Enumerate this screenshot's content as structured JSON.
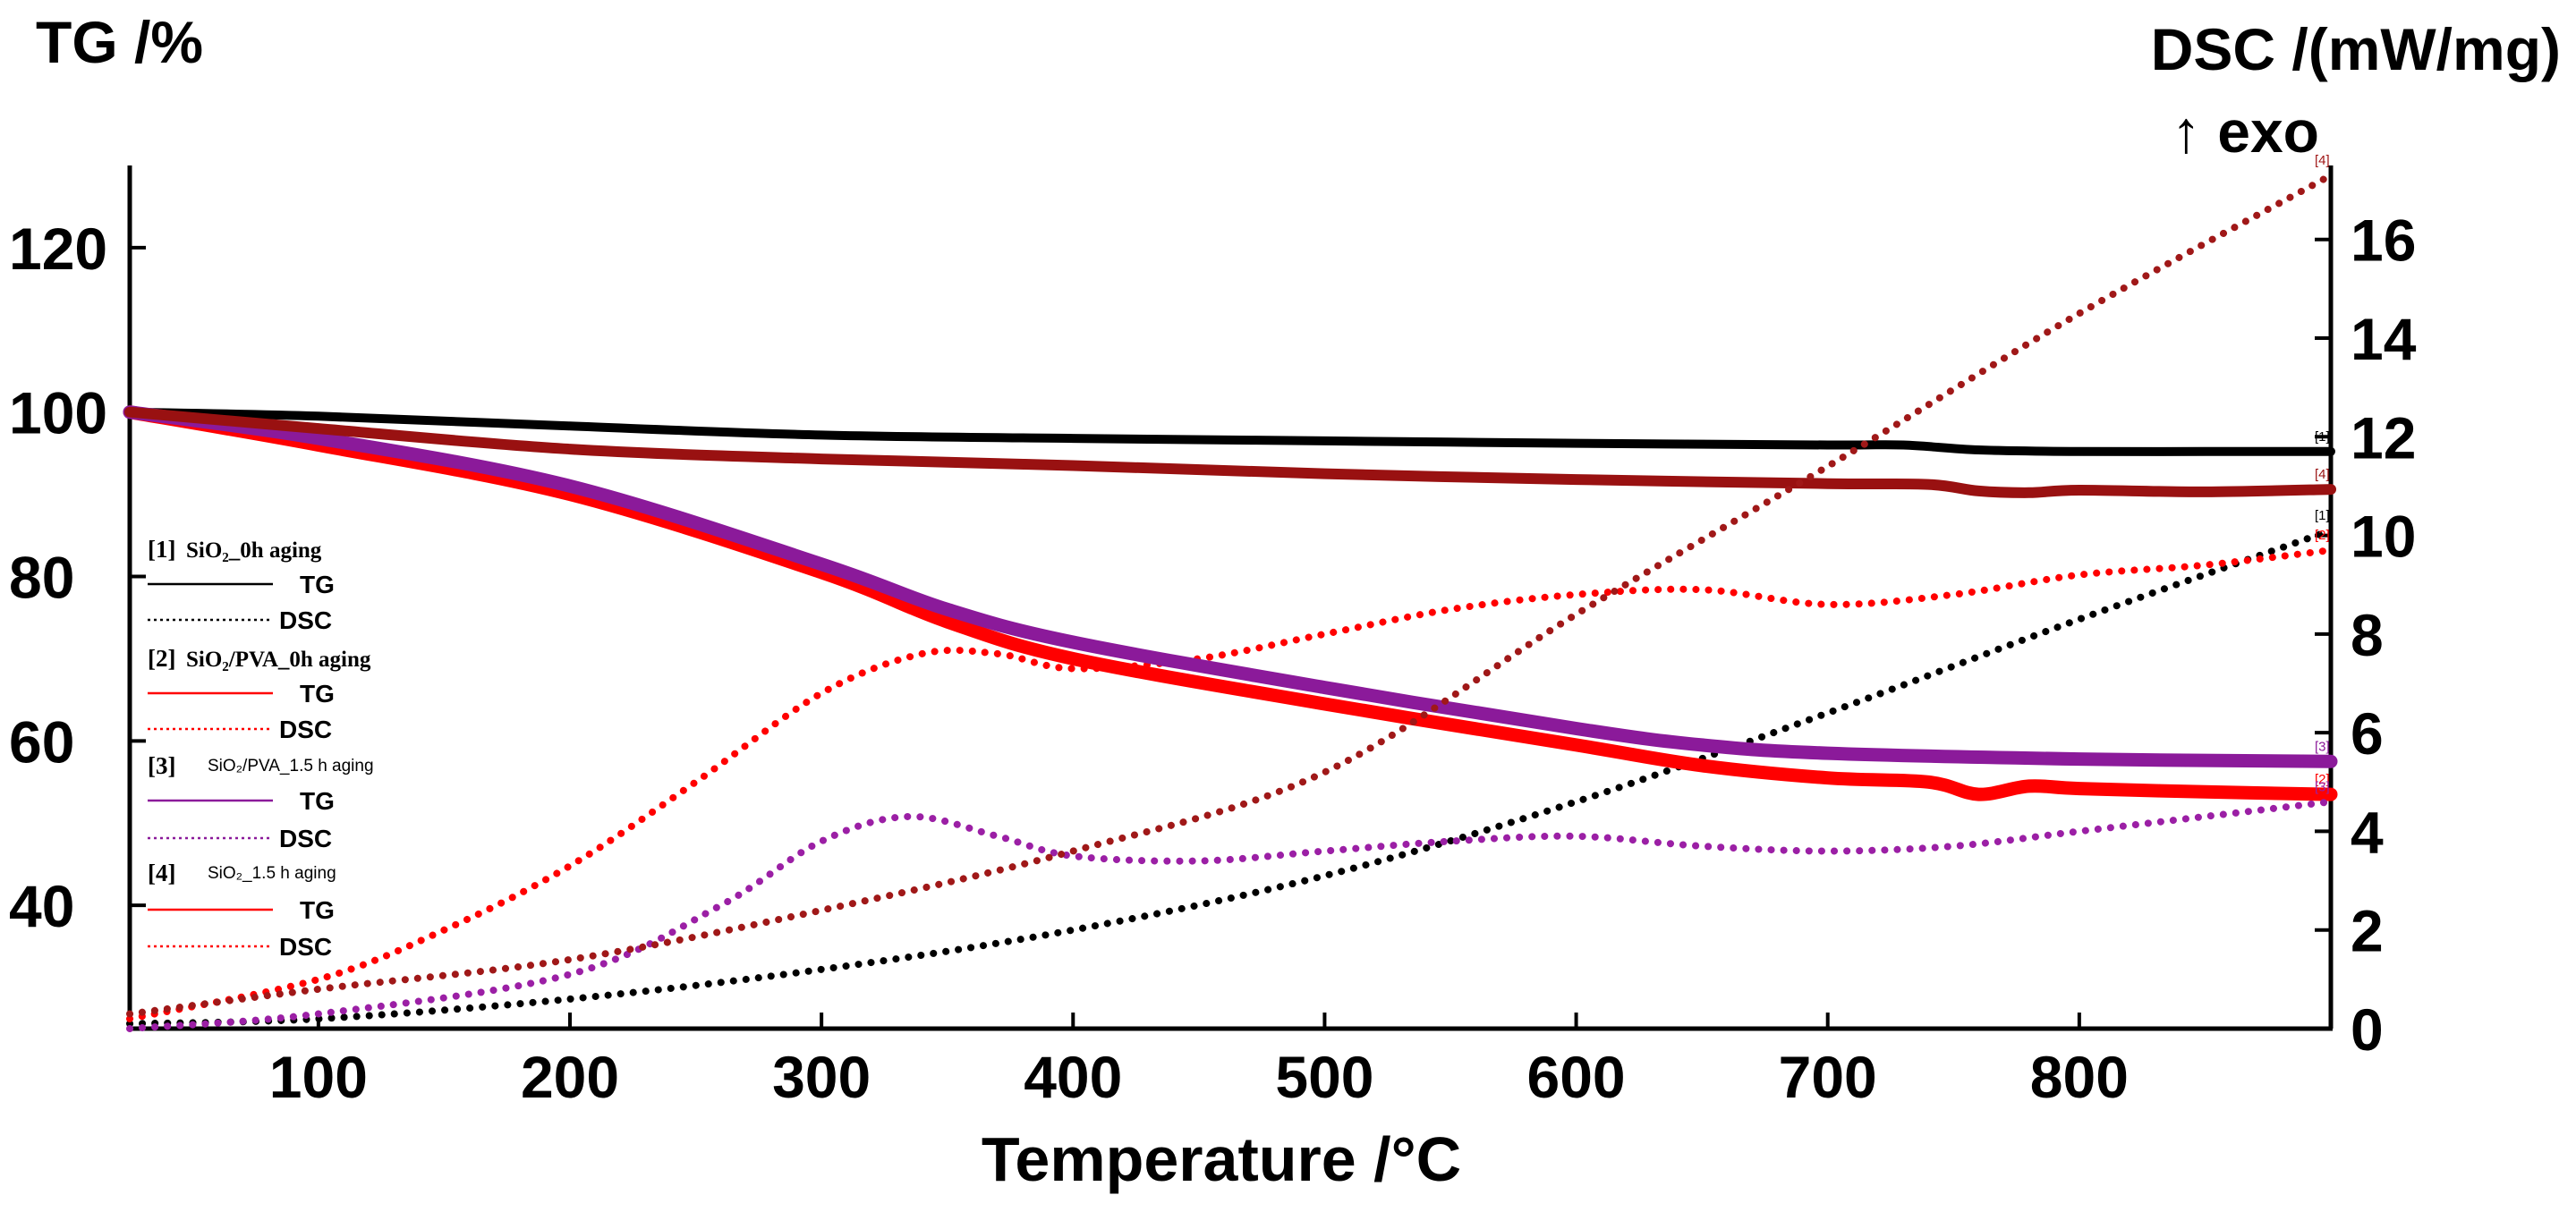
{
  "chart_data": {
    "type": "line",
    "title": "",
    "left_axis_title": "TG /%",
    "right_axis_title": "DSC /(mW/mg)",
    "right_axis_subtitle": "↑ exo",
    "xlabel": "Temperature /°C",
    "xlim": [
      25,
      900
    ],
    "ylim_left": [
      25,
      130
    ],
    "ylim_right": [
      0,
      17.5
    ],
    "x_ticks": [
      "100",
      "200",
      "300",
      "400",
      "500",
      "600",
      "700",
      "800"
    ],
    "x_tick_values": [
      100,
      200,
      300,
      400,
      500,
      600,
      700,
      800
    ],
    "y_left_ticks": [
      "40",
      "60",
      "80",
      "100",
      "120"
    ],
    "y_left_tick_values": [
      40,
      60,
      80,
      100,
      120
    ],
    "y_right_ticks": [
      "0",
      "2",
      "4",
      "6",
      "8",
      "10",
      "12",
      "14",
      "16"
    ],
    "y_right_tick_values": [
      0,
      2,
      4,
      6,
      8,
      10,
      12,
      14,
      16
    ],
    "legend": [
      {
        "index": "[1]",
        "sample": "SiO₂_0h aging",
        "tg_label": "TG",
        "dsc_label": "DSC"
      },
      {
        "index": "[2]",
        "sample": "SiO₂/PVA_0h aging",
        "tg_label": "TG",
        "dsc_label": "DSC"
      },
      {
        "index": "[3]",
        "sample": "SiO₂/PVA_1.5 h aging",
        "tg_label": "TG",
        "dsc_label": "DSC"
      },
      {
        "index": "[4]",
        "sample": "SiO₂_1.5 h aging",
        "tg_label": "TG",
        "dsc_label": "DSC"
      }
    ],
    "series": [
      {
        "name": "[1] SiO₂_0h aging TG",
        "tag": "[1]",
        "kind": "TG",
        "axis": "left",
        "color": "#000000",
        "x": [
          25,
          100,
          200,
          300,
          400,
          500,
          600,
          700,
          730,
          760,
          800,
          850,
          900
        ],
        "y": [
          100,
          99.5,
          98.3,
          97.2,
          96.8,
          96.5,
          96.2,
          96.0,
          96.0,
          95.4,
          95.2,
          95.2,
          95.2
        ]
      },
      {
        "name": "[1] SiO₂_0h aging DSC",
        "tag": "[1]",
        "kind": "DSC",
        "axis": "right",
        "color": "#000000",
        "x": [
          25,
          100,
          200,
          300,
          400,
          500,
          600,
          700,
          800,
          900
        ],
        "y": [
          0.1,
          0.2,
          0.6,
          1.2,
          2.0,
          3.1,
          4.6,
          6.4,
          8.3,
          10.1
        ]
      },
      {
        "name": "[2] SiO₂/PVA_0h aging TG",
        "tag": "[2]",
        "kind": "TG",
        "axis": "left",
        "color": "#ff0000",
        "x": [
          25,
          100,
          200,
          300,
          350,
          400,
          500,
          600,
          650,
          700,
          740,
          760,
          780,
          800,
          850,
          900
        ],
        "y": [
          100,
          96,
          90,
          80.5,
          74.5,
          70,
          64.5,
          59.5,
          57,
          55.5,
          55,
          53.5,
          54.5,
          54.2,
          53.8,
          53.5
        ]
      },
      {
        "name": "[2] SiO₂/PVA_0h aging DSC",
        "tag": "[2]",
        "kind": "DSC",
        "axis": "right",
        "color": "#ff0000",
        "x": [
          25,
          100,
          150,
          200,
          250,
          300,
          340,
          370,
          400,
          450,
          500,
          550,
          600,
          650,
          700,
          750,
          800,
          850,
          900
        ],
        "y": [
          0.2,
          1.0,
          2.0,
          3.3,
          5.0,
          6.8,
          7.6,
          7.6,
          7.3,
          7.5,
          8.0,
          8.5,
          8.8,
          8.9,
          8.6,
          8.8,
          9.2,
          9.4,
          9.7
        ]
      },
      {
        "name": "[3] SiO₂/PVA_1.5 h aging TG",
        "tag": "[3]",
        "kind": "TG",
        "axis": "left",
        "color": "#8b1a9a",
        "x": [
          25,
          100,
          200,
          300,
          350,
          400,
          500,
          600,
          650,
          700,
          800,
          900
        ],
        "y": [
          100,
          96.8,
          91,
          81.5,
          76,
          72,
          66.5,
          61.5,
          59.5,
          58.5,
          57.8,
          57.5
        ]
      },
      {
        "name": "[3] SiO₂/PVA_1.5 h aging DSC",
        "tag": "[3]",
        "kind": "DSC",
        "axis": "right",
        "color": "#9b1fa5",
        "x": [
          25,
          100,
          200,
          260,
          300,
          335,
          370,
          400,
          450,
          500,
          550,
          600,
          650,
          700,
          750,
          800,
          850,
          900
        ],
        "y": [
          0.0,
          0.3,
          1.1,
          2.5,
          3.8,
          4.3,
          3.9,
          3.5,
          3.4,
          3.6,
          3.8,
          3.9,
          3.7,
          3.6,
          3.7,
          4.0,
          4.3,
          4.6
        ]
      },
      {
        "name": "[4] SiO₂_1.5 h aging TG",
        "tag": "[4]",
        "kind": "TG",
        "axis": "left",
        "color": "#991111",
        "x": [
          25,
          100,
          200,
          300,
          400,
          500,
          600,
          700,
          740,
          760,
          780,
          800,
          850,
          900
        ],
        "y": [
          100,
          98,
          95.5,
          94.3,
          93.5,
          92.5,
          91.8,
          91.3,
          91.2,
          90.4,
          90.2,
          90.5,
          90.3,
          90.6
        ]
      },
      {
        "name": "[4] SiO₂_1.5 h aging DSC",
        "tag": "[4]",
        "kind": "DSC",
        "axis": "right",
        "color": "#a01818",
        "x": [
          25,
          100,
          200,
          300,
          400,
          500,
          600,
          700,
          800,
          900
        ],
        "y": [
          0.3,
          0.8,
          1.4,
          2.4,
          3.6,
          5.2,
          8.4,
          11.4,
          14.5,
          17.3
        ]
      }
    ]
  }
}
